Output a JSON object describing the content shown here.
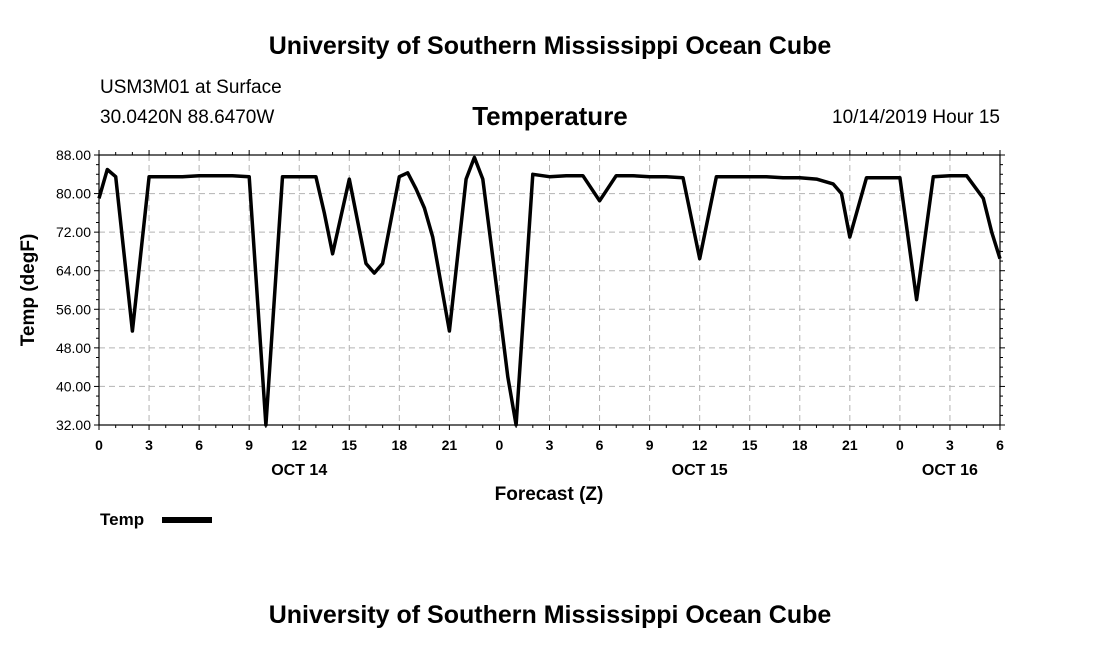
{
  "header": {
    "title": "University of Southern Mississippi Ocean Cube",
    "station": "USM3M01 at Surface",
    "coords": "30.0420N 88.6470W",
    "plot_title": "Temperature",
    "datetime": "10/14/2019 Hour 15"
  },
  "footer": {
    "title": "University of Southern Mississippi Ocean Cube"
  },
  "legend": {
    "label": "Temp"
  },
  "colors": {
    "line": "#000000",
    "grid": "#b3b3b3"
  },
  "chart_data": {
    "type": "line",
    "title": "Temperature",
    "xlabel": "Forecast (Z)",
    "ylabel": "Temp (degF)",
    "xlim": [
      0,
      54
    ],
    "ylim": [
      32,
      88
    ],
    "y_ticks": [
      "32.00",
      "40.00",
      "48.00",
      "56.00",
      "64.00",
      "72.00",
      "80.00",
      "88.00"
    ],
    "x_ticks": [
      {
        "x": 0,
        "label": "0"
      },
      {
        "x": 3,
        "label": "3"
      },
      {
        "x": 6,
        "label": "6"
      },
      {
        "x": 9,
        "label": "9"
      },
      {
        "x": 12,
        "label": "12"
      },
      {
        "x": 15,
        "label": "15"
      },
      {
        "x": 18,
        "label": "18"
      },
      {
        "x": 21,
        "label": "21"
      },
      {
        "x": 24,
        "label": "0"
      },
      {
        "x": 27,
        "label": "3"
      },
      {
        "x": 30,
        "label": "6"
      },
      {
        "x": 33,
        "label": "9"
      },
      {
        "x": 36,
        "label": "12"
      },
      {
        "x": 39,
        "label": "15"
      },
      {
        "x": 42,
        "label": "18"
      },
      {
        "x": 45,
        "label": "21"
      },
      {
        "x": 48,
        "label": "0"
      },
      {
        "x": 51,
        "label": "3"
      },
      {
        "x": 54,
        "label": "6"
      }
    ],
    "date_labels": [
      {
        "x": 12,
        "label": "OCT 14"
      },
      {
        "x": 36,
        "label": "OCT 15"
      },
      {
        "x": 51,
        "label": "OCT 16"
      }
    ],
    "series": [
      {
        "name": "Temp",
        "x": [
          0,
          0.5,
          1,
          2,
          3,
          4,
          5,
          6,
          7,
          8,
          9,
          10,
          11,
          12,
          13,
          13.5,
          14,
          15,
          16,
          16.5,
          17,
          18,
          18.5,
          19,
          19.5,
          20,
          21,
          22,
          22.5,
          23,
          24,
          24.5,
          25,
          26,
          27,
          28,
          29,
          30,
          31,
          32,
          33,
          34,
          35,
          36,
          37,
          38,
          39,
          40,
          41,
          42,
          43,
          44,
          44.5,
          45,
          46,
          47,
          48,
          49,
          50,
          51,
          52,
          53,
          53.5,
          54
        ],
        "y": [
          79,
          85,
          83.5,
          51.5,
          83.5,
          83.5,
          83.5,
          83.7,
          83.7,
          83.7,
          83.5,
          32,
          83.5,
          83.5,
          83.5,
          76,
          67.5,
          83,
          65.5,
          63.5,
          65.5,
          83.5,
          84.3,
          81,
          77,
          71,
          51.5,
          83,
          87.5,
          83,
          56,
          42,
          32,
          84,
          83.5,
          83.7,
          83.7,
          78.5,
          83.7,
          83.7,
          83.5,
          83.5,
          83.3,
          66.5,
          83.5,
          83.5,
          83.5,
          83.5,
          83.3,
          83.3,
          83,
          82,
          80,
          71,
          83.3,
          83.3,
          83.3,
          58,
          83.5,
          83.7,
          83.7,
          79,
          72,
          66.5
        ]
      }
    ]
  }
}
